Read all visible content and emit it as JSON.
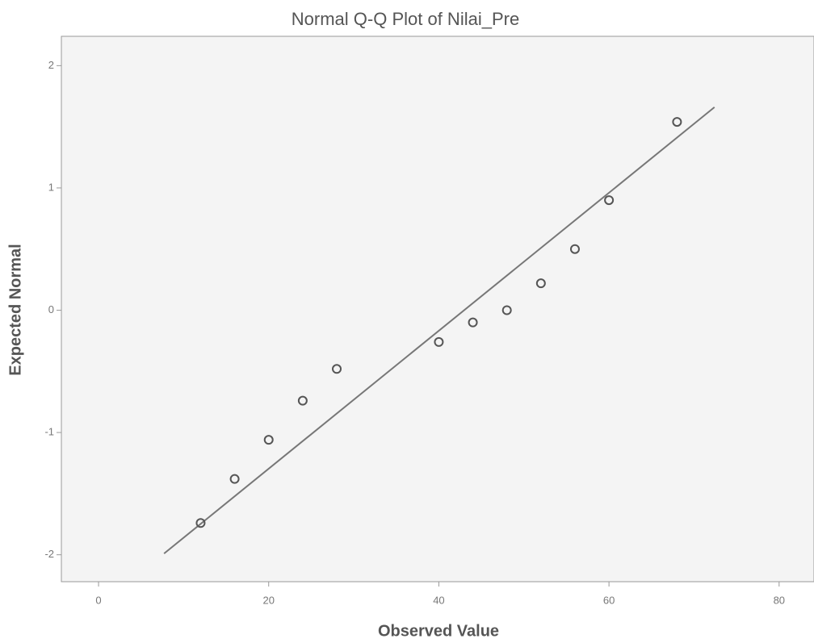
{
  "chart_data": {
    "type": "scatter",
    "title": "Normal Q-Q Plot of Nilai_Pre",
    "x_label": "Observed Value",
    "y_label": "Expected Normal",
    "series": [
      {
        "color": "#555555",
        "x": [
          12,
          16,
          20,
          24,
          28,
          40,
          44,
          48,
          52,
          56,
          60,
          68
        ],
        "values": [
          -1.74,
          -1.38,
          -1.06,
          -0.74,
          -0.48,
          -0.26,
          -0.1,
          0.0,
          0.22,
          0.5,
          0.9,
          1.54
        ]
      }
    ],
    "reference_line": {
      "color": "#777777",
      "x": [
        7.7,
        72.4
      ],
      "values": [
        -1.99,
        1.66
      ]
    },
    "xlim": [
      -4.37,
      84.1
    ],
    "ylim": [
      -2.22,
      2.24
    ],
    "xticks": [
      0,
      20,
      40,
      60,
      80
    ],
    "yticks": [
      -2,
      -1,
      0,
      1,
      2
    ],
    "background": "#f4f4f4"
  }
}
